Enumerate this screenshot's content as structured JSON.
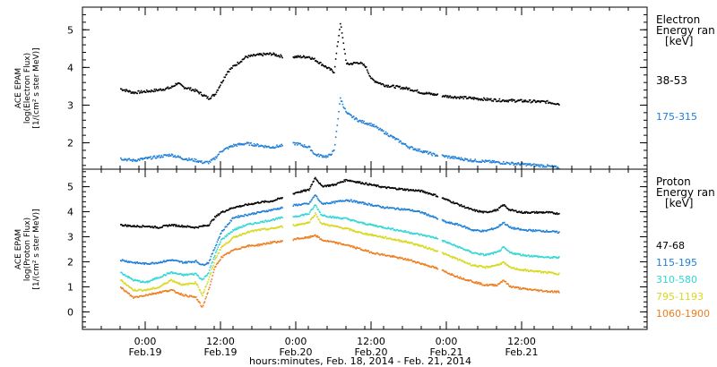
{
  "chart_data": [
    {
      "type": "scatter",
      "panel": "electron",
      "ylabel_lines": [
        "ACE EPAM",
        "log(Electron Flux)",
        "[1/(cm² s ster MeV)]"
      ],
      "yticks": [
        "2",
        "3",
        "4",
        "5"
      ],
      "ylim": [
        1.3,
        5.6
      ],
      "legend_title": [
        "Electron",
        "Energy ran",
        "[keV]"
      ],
      "series": [
        {
          "name": "38-53",
          "color": "#000000",
          "points": [
            [
              -4,
              3.45
            ],
            [
              -2,
              3.35
            ],
            [
              0,
              3.38
            ],
            [
              2,
              3.42
            ],
            [
              4,
              3.48
            ],
            [
              5,
              3.6
            ],
            [
              6,
              3.5
            ],
            [
              8,
              3.4
            ],
            [
              9,
              3.3
            ],
            [
              10,
              3.2
            ],
            [
              11,
              3.3
            ],
            [
              12,
              3.6
            ],
            [
              13,
              3.9
            ],
            [
              14,
              4.05
            ],
            [
              16,
              4.3
            ],
            [
              18,
              4.35
            ],
            [
              20,
              4.38
            ],
            [
              22,
              4.3
            ],
            [
              24,
              4.3
            ],
            [
              26,
              4.3
            ],
            [
              27,
              4.22
            ],
            [
              29,
              4.0
            ],
            [
              30,
              3.9
            ],
            [
              31,
              5.2
            ],
            [
              32,
              4.1
            ],
            [
              34,
              4.15
            ],
            [
              35,
              4.05
            ],
            [
              36,
              3.7
            ],
            [
              38,
              3.55
            ],
            [
              40,
              3.5
            ],
            [
              42,
              3.45
            ],
            [
              44,
              3.35
            ],
            [
              46,
              3.3
            ],
            [
              48,
              3.25
            ],
            [
              52,
              3.2
            ],
            [
              56,
              3.15
            ],
            [
              60,
              3.13
            ],
            [
              64,
              3.1
            ],
            [
              66,
              3.05
            ]
          ]
        },
        {
          "name": "175-315",
          "color": "#1e7fd8",
          "points": [
            [
              -4,
              1.6
            ],
            [
              -2,
              1.55
            ],
            [
              0,
              1.6
            ],
            [
              2,
              1.65
            ],
            [
              4,
              1.7
            ],
            [
              6,
              1.6
            ],
            [
              8,
              1.55
            ],
            [
              9,
              1.5
            ],
            [
              10,
              1.5
            ],
            [
              11,
              1.6
            ],
            [
              12,
              1.8
            ],
            [
              14,
              1.95
            ],
            [
              16,
              2.0
            ],
            [
              18,
              1.95
            ],
            [
              20,
              1.9
            ],
            [
              22,
              1.95
            ],
            [
              24,
              2.0
            ],
            [
              26,
              1.9
            ],
            [
              27,
              1.7
            ],
            [
              29,
              1.65
            ],
            [
              30,
              1.8
            ],
            [
              31,
              3.2
            ],
            [
              32,
              2.8
            ],
            [
              34,
              2.6
            ],
            [
              36,
              2.5
            ],
            [
              38,
              2.3
            ],
            [
              40,
              2.1
            ],
            [
              42,
              1.9
            ],
            [
              44,
              1.8
            ],
            [
              46,
              1.7
            ],
            [
              48,
              1.65
            ],
            [
              52,
              1.55
            ],
            [
              56,
              1.5
            ],
            [
              60,
              1.45
            ],
            [
              64,
              1.4
            ],
            [
              66,
              1.35
            ]
          ]
        }
      ]
    },
    {
      "type": "scatter",
      "panel": "proton",
      "ylabel_lines": [
        "ACE EPAM",
        "log(Proton Flux)",
        "[1/(cm² s ster MeV)]"
      ],
      "yticks": [
        "0",
        "1",
        "2",
        "3",
        "4",
        "5"
      ],
      "ylim": [
        -0.7,
        5.7
      ],
      "legend_title": [
        "Proton",
        "Energy ran",
        "[keV]"
      ],
      "series": [
        {
          "name": "47-68",
          "color": "#000000",
          "points": [
            [
              -4,
              3.5
            ],
            [
              -2,
              3.45
            ],
            [
              0,
              3.45
            ],
            [
              2,
              3.4
            ],
            [
              4,
              3.5
            ],
            [
              6,
              3.45
            ],
            [
              8,
              3.4
            ],
            [
              10,
              3.5
            ],
            [
              11,
              3.8
            ],
            [
              12,
              4.0
            ],
            [
              14,
              4.2
            ],
            [
              16,
              4.3
            ],
            [
              18,
              4.4
            ],
            [
              20,
              4.45
            ],
            [
              22,
              4.6
            ],
            [
              24,
              4.8
            ],
            [
              26,
              4.9
            ],
            [
              27,
              5.4
            ],
            [
              28,
              5.05
            ],
            [
              30,
              5.1
            ],
            [
              32,
              5.3
            ],
            [
              34,
              5.2
            ],
            [
              36,
              5.1
            ],
            [
              38,
              5.0
            ],
            [
              40,
              4.95
            ],
            [
              42,
              4.9
            ],
            [
              44,
              4.85
            ],
            [
              46,
              4.7
            ],
            [
              48,
              4.5
            ],
            [
              50,
              4.3
            ],
            [
              52,
              4.1
            ],
            [
              54,
              4.0
            ],
            [
              56,
              4.1
            ],
            [
              57,
              4.3
            ],
            [
              58,
              4.1
            ],
            [
              60,
              4.0
            ],
            [
              64,
              4.0
            ],
            [
              66,
              3.95
            ]
          ]
        },
        {
          "name": "115-195",
          "color": "#1e7fd8",
          "points": [
            [
              -4,
              2.1
            ],
            [
              -2,
              2.0
            ],
            [
              0,
              1.95
            ],
            [
              2,
              2.0
            ],
            [
              4,
              2.1
            ],
            [
              6,
              2.0
            ],
            [
              8,
              2.05
            ],
            [
              9,
              1.9
            ],
            [
              10,
              2.0
            ],
            [
              11,
              2.6
            ],
            [
              12,
              3.2
            ],
            [
              14,
              3.8
            ],
            [
              16,
              3.9
            ],
            [
              18,
              4.0
            ],
            [
              20,
              4.1
            ],
            [
              22,
              4.2
            ],
            [
              24,
              4.3
            ],
            [
              26,
              4.35
            ],
            [
              27,
              4.7
            ],
            [
              28,
              4.35
            ],
            [
              30,
              4.4
            ],
            [
              32,
              4.5
            ],
            [
              34,
              4.4
            ],
            [
              36,
              4.3
            ],
            [
              38,
              4.2
            ],
            [
              40,
              4.15
            ],
            [
              42,
              4.1
            ],
            [
              44,
              4.0
            ],
            [
              46,
              3.8
            ],
            [
              48,
              3.6
            ],
            [
              50,
              3.5
            ],
            [
              52,
              3.3
            ],
            [
              54,
              3.25
            ],
            [
              56,
              3.4
            ],
            [
              57,
              3.6
            ],
            [
              58,
              3.4
            ],
            [
              60,
              3.3
            ],
            [
              64,
              3.25
            ],
            [
              66,
              3.2
            ]
          ]
        },
        {
          "name": "310-580",
          "color": "#33d6d6",
          "points": [
            [
              -4,
              1.6
            ],
            [
              -2,
              1.3
            ],
            [
              0,
              1.2
            ],
            [
              2,
              1.4
            ],
            [
              4,
              1.6
            ],
            [
              6,
              1.5
            ],
            [
              8,
              1.55
            ],
            [
              9,
              1.3
            ],
            [
              10,
              1.6
            ],
            [
              11,
              2.3
            ],
            [
              12,
              2.9
            ],
            [
              14,
              3.3
            ],
            [
              16,
              3.5
            ],
            [
              18,
              3.6
            ],
            [
              20,
              3.7
            ],
            [
              22,
              3.8
            ],
            [
              24,
              3.85
            ],
            [
              26,
              3.95
            ],
            [
              27,
              4.3
            ],
            [
              28,
              3.9
            ],
            [
              30,
              3.8
            ],
            [
              32,
              3.75
            ],
            [
              34,
              3.6
            ],
            [
              36,
              3.5
            ],
            [
              38,
              3.4
            ],
            [
              40,
              3.3
            ],
            [
              42,
              3.2
            ],
            [
              44,
              3.1
            ],
            [
              46,
              3.0
            ],
            [
              48,
              2.8
            ],
            [
              50,
              2.6
            ],
            [
              52,
              2.4
            ],
            [
              54,
              2.3
            ],
            [
              56,
              2.4
            ],
            [
              57,
              2.6
            ],
            [
              58,
              2.4
            ],
            [
              60,
              2.3
            ],
            [
              64,
              2.2
            ],
            [
              66,
              2.2
            ]
          ]
        },
        {
          "name": "795-1193",
          "color": "#d8d81e",
          "points": [
            [
              -4,
              1.3
            ],
            [
              -2,
              0.9
            ],
            [
              0,
              0.9
            ],
            [
              2,
              1.0
            ],
            [
              4,
              1.3
            ],
            [
              6,
              1.1
            ],
            [
              8,
              1.2
            ],
            [
              9,
              0.7
            ],
            [
              10,
              1.3
            ],
            [
              11,
              2.1
            ],
            [
              12,
              2.6
            ],
            [
              14,
              3.0
            ],
            [
              16,
              3.2
            ],
            [
              18,
              3.3
            ],
            [
              20,
              3.35
            ],
            [
              22,
              3.45
            ],
            [
              24,
              3.5
            ],
            [
              26,
              3.6
            ],
            [
              27,
              3.95
            ],
            [
              28,
              3.55
            ],
            [
              30,
              3.45
            ],
            [
              32,
              3.35
            ],
            [
              34,
              3.2
            ],
            [
              36,
              3.1
            ],
            [
              38,
              3.0
            ],
            [
              40,
              2.9
            ],
            [
              42,
              2.8
            ],
            [
              44,
              2.65
            ],
            [
              46,
              2.5
            ],
            [
              48,
              2.3
            ],
            [
              50,
              2.1
            ],
            [
              52,
              1.9
            ],
            [
              54,
              1.8
            ],
            [
              56,
              1.9
            ],
            [
              57,
              2.0
            ],
            [
              58,
              1.8
            ],
            [
              60,
              1.7
            ],
            [
              64,
              1.6
            ],
            [
              66,
              1.55
            ]
          ]
        },
        {
          "name": "1060-1900",
          "color": "#ee7d1e",
          "points": [
            [
              -4,
              1.0
            ],
            [
              -2,
              0.6
            ],
            [
              0,
              0.7
            ],
            [
              2,
              0.8
            ],
            [
              4,
              0.9
            ],
            [
              6,
              0.7
            ],
            [
              8,
              0.6
            ],
            [
              9,
              0.2
            ],
            [
              10,
              0.9
            ],
            [
              11,
              1.8
            ],
            [
              12,
              2.2
            ],
            [
              14,
              2.5
            ],
            [
              16,
              2.65
            ],
            [
              18,
              2.7
            ],
            [
              20,
              2.8
            ],
            [
              22,
              2.85
            ],
            [
              24,
              2.95
            ],
            [
              26,
              3.0
            ],
            [
              27,
              3.1
            ],
            [
              28,
              2.9
            ],
            [
              30,
              2.8
            ],
            [
              32,
              2.7
            ],
            [
              34,
              2.55
            ],
            [
              36,
              2.4
            ],
            [
              38,
              2.3
            ],
            [
              40,
              2.2
            ],
            [
              42,
              2.1
            ],
            [
              44,
              1.95
            ],
            [
              46,
              1.8
            ],
            [
              48,
              1.6
            ],
            [
              50,
              1.4
            ],
            [
              52,
              1.25
            ],
            [
              54,
              1.1
            ],
            [
              56,
              1.1
            ],
            [
              57,
              1.3
            ],
            [
              58,
              1.05
            ],
            [
              60,
              0.95
            ],
            [
              64,
              0.85
            ],
            [
              66,
              0.82
            ]
          ]
        }
      ]
    }
  ],
  "xaxis": {
    "range_hours": [
      -10,
      80
    ],
    "major_ticks": [
      {
        "hour": 0,
        "time": "0:00",
        "date": "Feb.19"
      },
      {
        "hour": 12,
        "time": "12:00",
        "date": "Feb.19"
      },
      {
        "hour": 24,
        "time": "0:00",
        "date": "Feb.20"
      },
      {
        "hour": 36,
        "time": "12:00",
        "date": "Feb.20"
      },
      {
        "hour": 48,
        "time": "0:00",
        "date": "Feb.21"
      },
      {
        "hour": 60,
        "time": "12:00",
        "date": "Feb.21"
      }
    ],
    "minor_step_hours": 3,
    "xlabel": "hours:minutes, Feb. 18, 2014 - Feb. 21, 2014"
  }
}
